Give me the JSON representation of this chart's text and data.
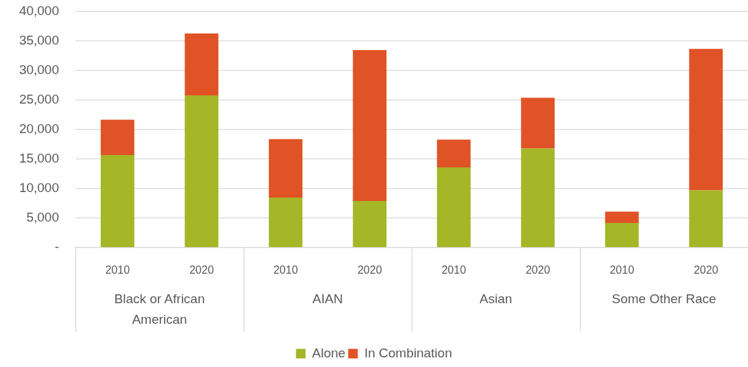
{
  "chart_data": {
    "type": "bar",
    "stacked": true,
    "categories": [
      "2010",
      "2020",
      "2010",
      "2020",
      "2010",
      "2020",
      "2010",
      "2020"
    ],
    "series": [
      {
        "name": "Alone",
        "color": "#a5b627",
        "values": [
          15700,
          25800,
          8500,
          7900,
          13600,
          16800,
          4200,
          9700
        ]
      },
      {
        "name": "In Combination",
        "color": "#e05326",
        "values": [
          6000,
          10500,
          9900,
          25600,
          4700,
          8600,
          1900,
          24000
        ]
      }
    ],
    "ylim": [
      0,
      40000
    ],
    "yticks": [
      {
        "value": 0,
        "label": "-"
      },
      {
        "value": 5000,
        "label": "5,000"
      },
      {
        "value": 10000,
        "label": "10,000"
      },
      {
        "value": 15000,
        "label": "15,000"
      },
      {
        "value": 20000,
        "label": "20,000"
      },
      {
        "value": 25000,
        "label": "25,000"
      },
      {
        "value": 30000,
        "label": "30,000"
      },
      {
        "value": 35000,
        "label": "35,000"
      },
      {
        "value": 40000,
        "label": "40,000"
      }
    ],
    "grid": "y",
    "legend": "bottom",
    "annotations": [
      "Black or African American",
      "AIAN",
      "Asian",
      "Some Other Race"
    ]
  }
}
